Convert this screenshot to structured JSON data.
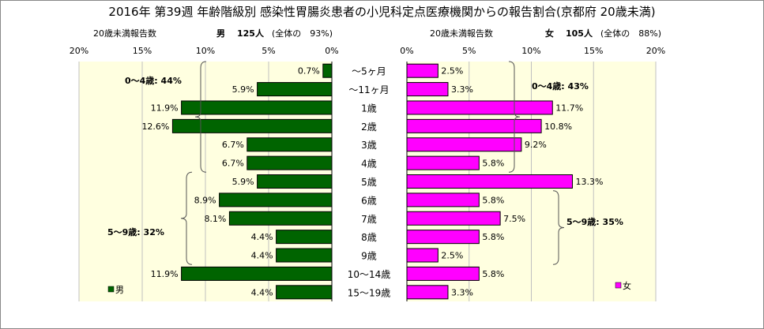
{
  "title": "2016年 第39週 年齢階級別 感染性胃腸炎患者の小児科定点医療機関からの報告割合(京都府 20歳未満)",
  "header_male": {
    "label": "20歳未満報告数",
    "sex": "男",
    "count": "125人",
    "share": "(全体の　93%)"
  },
  "header_female": {
    "label": "20歳未満報告数",
    "sex": "女",
    "count": "105人",
    "share": "(全体の　88%)"
  },
  "chart_data": [
    {
      "type": "bar",
      "orientation": "horizontal",
      "direction": "right-to-left",
      "categories": [
        "～5ヶ月",
        "～11ヶ月",
        "1歳",
        "2歳",
        "3歳",
        "4歳",
        "5歳",
        "6歳",
        "7歳",
        "8歳",
        "9歳",
        "10～14歳",
        "15～19歳"
      ],
      "series": [
        {
          "name": "男",
          "values": [
            0.7,
            5.9,
            11.9,
            12.6,
            6.7,
            6.7,
            5.9,
            8.9,
            8.1,
            4.4,
            4.4,
            11.9,
            4.4
          ],
          "labels": [
            "0.7%",
            "5.9%",
            "11.9%",
            "12.6%",
            "6.7%",
            "6.7%",
            "5.9%",
            "8.9%",
            "8.1%",
            "4.4%",
            "4.4%",
            "11.9%",
            "4.4%"
          ],
          "color": "#006400"
        }
      ],
      "xlim": [
        0,
        20
      ],
      "ticks": [
        "20%",
        "15%",
        "10%",
        "5%",
        "0%"
      ],
      "grid": true,
      "legend": "bottom-left",
      "annotations": [
        "0～4歳: 44%",
        "5～9歳: 32%"
      ]
    },
    {
      "type": "bar",
      "orientation": "horizontal",
      "direction": "left-to-right",
      "categories": [
        "～5ヶ月",
        "～11ヶ月",
        "1歳",
        "2歳",
        "3歳",
        "4歳",
        "5歳",
        "6歳",
        "7歳",
        "8歳",
        "9歳",
        "10～14歳",
        "15～19歳"
      ],
      "series": [
        {
          "name": "女",
          "values": [
            2.5,
            3.3,
            11.7,
            10.8,
            9.2,
            5.8,
            13.3,
            5.8,
            7.5,
            5.8,
            2.5,
            5.8,
            3.3
          ],
          "labels": [
            "2.5%",
            "3.3%",
            "11.7%",
            "10.8%",
            "9.2%",
            "5.8%",
            "13.3%",
            "5.8%",
            "7.5%",
            "5.8%",
            "2.5%",
            "5.8%",
            "3.3%"
          ],
          "color": "#ff00ff"
        }
      ],
      "xlim": [
        0,
        20
      ],
      "ticks": [
        "0%",
        "5%",
        "10%",
        "15%",
        "20%"
      ],
      "grid": true,
      "legend": "bottom-right",
      "annotations": [
        "0～4歳: 43%",
        "5～9歳: 35%"
      ]
    }
  ],
  "colors": {
    "plot_bg": "#ffffe0",
    "male_bar": "#006400",
    "female_bar": "#ff00ff",
    "grid": "#c0c0c0"
  }
}
